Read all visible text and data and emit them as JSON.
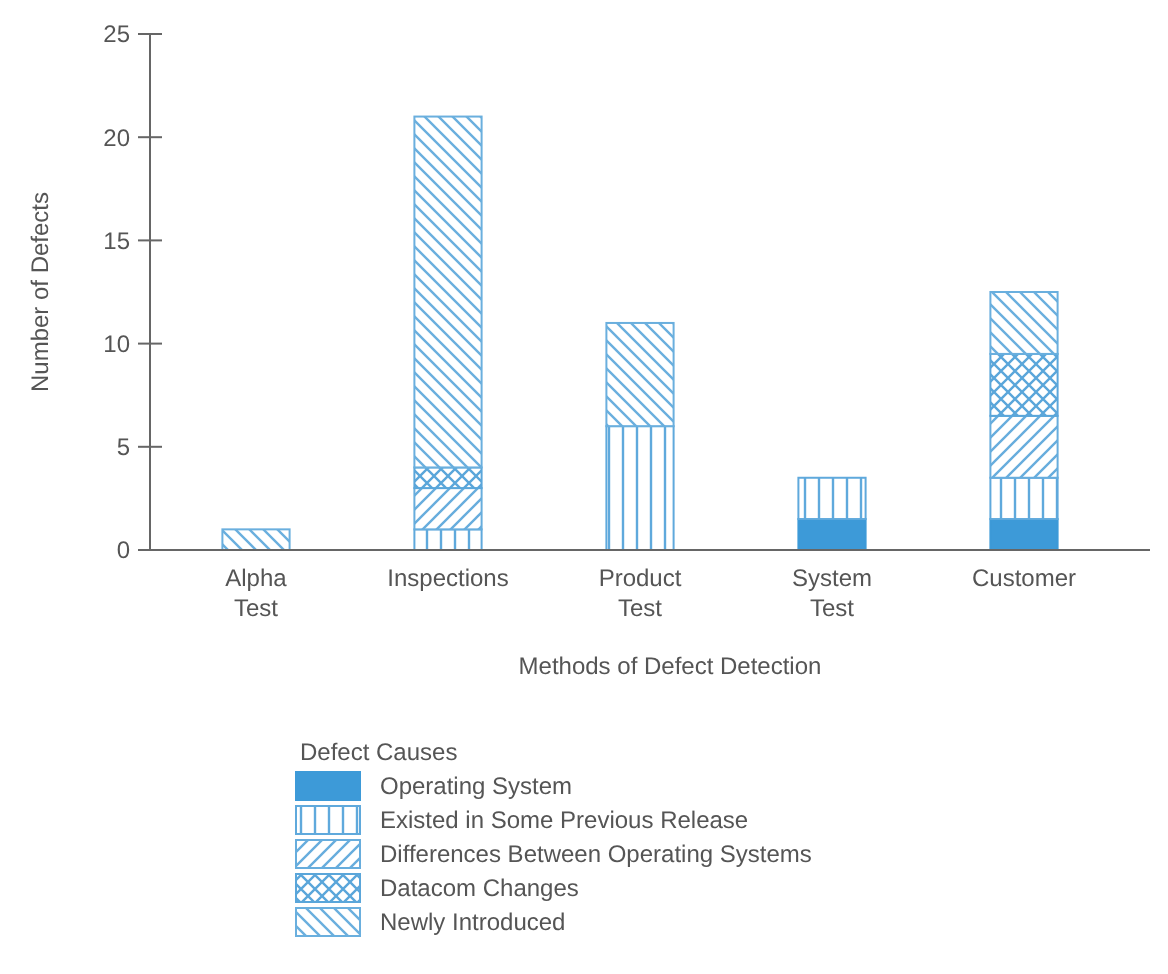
{
  "chart_data": {
    "type": "bar",
    "stacked": true,
    "xlabel": "Methods of Defect Detection",
    "ylabel": "Number of Defects",
    "legend_title": "Defect Causes",
    "legend": "bottom",
    "grid": false,
    "categories": [
      "Alpha Test",
      "Inspections",
      "Product Test",
      "System Test",
      "Customer"
    ],
    "ylim": [
      0,
      25
    ],
    "yticks": [
      0,
      5,
      10,
      15,
      20,
      25
    ],
    "series": [
      {
        "name": "Operating System",
        "color": "#3d9ad8",
        "values": [
          0,
          0,
          0,
          1.5,
          1.5
        ]
      },
      {
        "name": "Existed in Some Previous Release",
        "color": "#5fa9dc",
        "values": [
          0,
          1,
          6,
          2,
          2
        ]
      },
      {
        "name": "Differences Between Operating Systems",
        "color": "#67addd",
        "values": [
          0,
          2,
          0,
          0,
          3
        ]
      },
      {
        "name": "Datacom Changes",
        "color": "#5aa6da",
        "values": [
          0,
          1,
          0,
          0,
          3
        ]
      },
      {
        "name": "Newly Introduced",
        "color": "#6aafde",
        "values": [
          1,
          17,
          5,
          0,
          3
        ]
      }
    ]
  }
}
